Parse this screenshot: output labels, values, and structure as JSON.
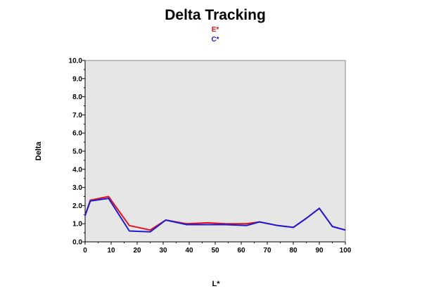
{
  "chart_data": {
    "type": "line",
    "title": "Delta Tracking",
    "xlabel": "L*",
    "ylabel": "Delta",
    "xlim": [
      0,
      100
    ],
    "ylim": [
      0,
      10
    ],
    "x_ticks": [
      "0",
      "10",
      "20",
      "30",
      "40",
      "50",
      "60",
      "70",
      "80",
      "90",
      "100"
    ],
    "y_ticks": [
      "0.0",
      "1.0",
      "2.0",
      "3.0",
      "4.0",
      "5.0",
      "6.0",
      "7.0",
      "8.0",
      "9.0",
      "10.0"
    ],
    "grid": false,
    "legend_position": "top-center",
    "plot_background": "#e6e6e6",
    "series": [
      {
        "name": "E*",
        "color": "#e8101a",
        "x": [
          0,
          2,
          9,
          17,
          25,
          31,
          39,
          47,
          54,
          62,
          67,
          74,
          80,
          85,
          90,
          95,
          100
        ],
        "y": [
          1.45,
          2.3,
          2.5,
          0.9,
          0.65,
          1.2,
          1.0,
          1.05,
          1.0,
          1.0,
          1.1,
          0.9,
          0.8,
          1.3,
          1.85,
          0.85,
          0.65
        ]
      },
      {
        "name": "C*",
        "color": "#1c1cd6",
        "x": [
          0,
          2,
          9,
          17,
          25,
          31,
          39,
          47,
          54,
          62,
          67,
          74,
          80,
          85,
          90,
          95,
          100
        ],
        "y": [
          1.45,
          2.25,
          2.4,
          0.6,
          0.55,
          1.2,
          0.95,
          0.95,
          0.95,
          0.9,
          1.1,
          0.9,
          0.8,
          1.3,
          1.85,
          0.85,
          0.65
        ]
      }
    ]
  }
}
